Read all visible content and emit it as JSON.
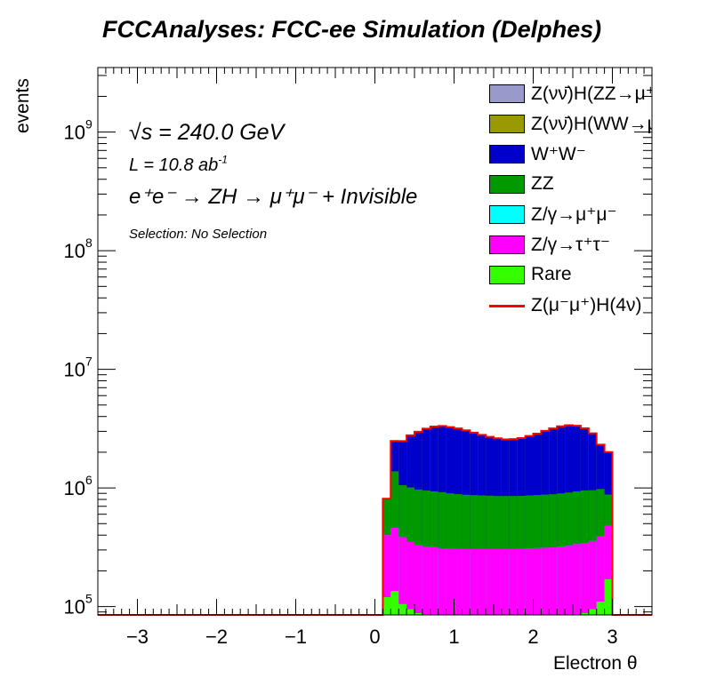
{
  "title": "FCCAnalyses: FCC-ee Simulation (Delphes)",
  "annotations": {
    "sqrt_s": "√s = 240.0 GeV",
    "lumi_prefix": "L = 10.8 ab",
    "lumi_sup": "-1",
    "process": "e⁺e⁻ → ZH → μ⁺μ⁻ + Invisible",
    "selection": "Selection: No Selection"
  },
  "colors": {
    "ZH_ZZ": "#9999cc",
    "ZH_WW": "#999900",
    "WW": "#0000cc",
    "ZZ": "#009900",
    "Zmumu": "#00ffff",
    "Ztautau": "#ff00ff",
    "Rare": "#33ff00",
    "signal": "#ff0000"
  },
  "legend": [
    {
      "label": "Z(νν̄)H(ZZ→μ⁺μ⁻ν⁺ν",
      "kind": "box",
      "color_key": "ZH_ZZ"
    },
    {
      "label": "Z(νν̄)H(WW→μ⁺νμ",
      "kind": "box",
      "color_key": "ZH_WW"
    },
    {
      "label": "W⁺W⁻",
      "kind": "box",
      "color_key": "WW"
    },
    {
      "label": "ZZ",
      "kind": "box",
      "color_key": "ZZ"
    },
    {
      "label": "Z/γ→μ⁺μ⁻",
      "kind": "box",
      "color_key": "Zmumu"
    },
    {
      "label": "Z/γ→τ⁺τ⁻",
      "kind": "box",
      "color_key": "Ztautau"
    },
    {
      "label": "Rare",
      "kind": "box",
      "color_key": "Rare"
    },
    {
      "label": "Z(μ⁻μ⁺)H(4ν)",
      "kind": "line",
      "color_key": "signal"
    }
  ],
  "chart_data": {
    "type": "area",
    "title": "FCCAnalyses: FCC-ee Simulation (Delphes)",
    "xlabel": "Electron θ",
    "ylabel": "events",
    "xlim": [
      -3.5,
      3.5
    ],
    "ylim": [
      85000,
      3500000000
    ],
    "y_log": true,
    "x_ticks": [
      -3,
      -2,
      -1,
      0,
      1,
      2,
      3
    ],
    "y_tick_labels": [
      {
        "value": 100000,
        "base": "10",
        "exp": "5"
      },
      {
        "value": 1000000,
        "base": "10",
        "exp": "6"
      },
      {
        "value": 10000000,
        "base": "10",
        "exp": "7"
      },
      {
        "value": 100000000,
        "base": "10",
        "exp": "8"
      },
      {
        "value": 1000000000,
        "base": "10",
        "exp": "9"
      }
    ],
    "grid": false,
    "stacked": true,
    "x_bin_centers": [
      0.15,
      0.25,
      0.35,
      0.45,
      0.55,
      0.65,
      0.75,
      0.85,
      0.95,
      1.05,
      1.15,
      1.25,
      1.35,
      1.45,
      1.55,
      1.65,
      1.75,
      1.85,
      1.95,
      2.05,
      2.15,
      2.25,
      2.35,
      2.45,
      2.55,
      2.65,
      2.75,
      2.85,
      2.95
    ],
    "series": [
      {
        "name": "Rare",
        "color_key": "Rare",
        "values": [
          120000,
          135000,
          105000,
          95000,
          88000,
          86000,
          86000,
          85000,
          85000,
          85000,
          85000,
          85000,
          85000,
          85000,
          85000,
          85000,
          85000,
          85000,
          85000,
          85000,
          85000,
          85000,
          85000,
          85000,
          86000,
          88000,
          95000,
          110000,
          170000
        ]
      },
      {
        "name": "Z/γ→τ⁺τ⁻",
        "color_key": "Ztautau",
        "values": [
          280000,
          325000,
          280000,
          255000,
          240000,
          235000,
          230000,
          225000,
          225000,
          222000,
          220000,
          220000,
          220000,
          220000,
          220000,
          220000,
          220000,
          222000,
          224000,
          226000,
          228000,
          230000,
          235000,
          240000,
          250000,
          255000,
          262000,
          280000,
          310000
        ]
      },
      {
        "name": "Z/γ→μ⁺μ⁻",
        "color_key": "Zmumu",
        "values": [
          0,
          0,
          0,
          0,
          0,
          0,
          0,
          0,
          0,
          0,
          0,
          0,
          0,
          0,
          0,
          0,
          0,
          0,
          0,
          0,
          0,
          0,
          0,
          0,
          0,
          0,
          0,
          0,
          0
        ]
      },
      {
        "name": "ZZ",
        "color_key": "ZZ",
        "values": [
          410000,
          920000,
          670000,
          660000,
          640000,
          630000,
          620000,
          610000,
          590000,
          580000,
          570000,
          565000,
          560000,
          555000,
          550000,
          550000,
          550000,
          550000,
          555000,
          560000,
          565000,
          570000,
          580000,
          590000,
          600000,
          610000,
          600000,
          590000,
          400000
        ]
      },
      {
        "name": "W⁺W⁻",
        "color_key": "WW",
        "values": [
          0,
          1100000,
          1420000,
          1760000,
          2000000,
          2200000,
          2350000,
          2400000,
          2350000,
          2280000,
          2180000,
          2050000,
          1930000,
          1830000,
          1760000,
          1700000,
          1720000,
          1770000,
          1870000,
          1990000,
          2140000,
          2280000,
          2400000,
          2460000,
          2400000,
          2220000,
          1920000,
          1330000,
          1120000
        ]
      },
      {
        "name": "Z(νν̄)H(WW→μ⁺νμ",
        "color_key": "ZH_WW",
        "values": [
          0,
          5000,
          6000,
          6000,
          6000,
          6000,
          6000,
          6000,
          6000,
          6000,
          6000,
          6000,
          6000,
          6000,
          6000,
          6000,
          6000,
          6000,
          6000,
          6000,
          6000,
          6000,
          6000,
          6000,
          6000,
          6000,
          6000,
          6000,
          6000
        ]
      },
      {
        "name": "Z(νν̄)H(ZZ→μ⁺μ⁻ν⁺ν",
        "color_key": "ZH_ZZ",
        "values": [
          0,
          1000,
          1000,
          1000,
          1000,
          1000,
          1000,
          1000,
          1000,
          1000,
          1000,
          1000,
          1000,
          1000,
          1000,
          1000,
          1000,
          1000,
          1000,
          1000,
          1000,
          1000,
          1000,
          1000,
          1000,
          1000,
          1000,
          1000,
          1000
        ]
      }
    ],
    "signal": {
      "name": "Z(μ⁻μ⁺)H(4ν)",
      "color_key": "signal",
      "note": "drawn as outline on top of stack"
    }
  }
}
